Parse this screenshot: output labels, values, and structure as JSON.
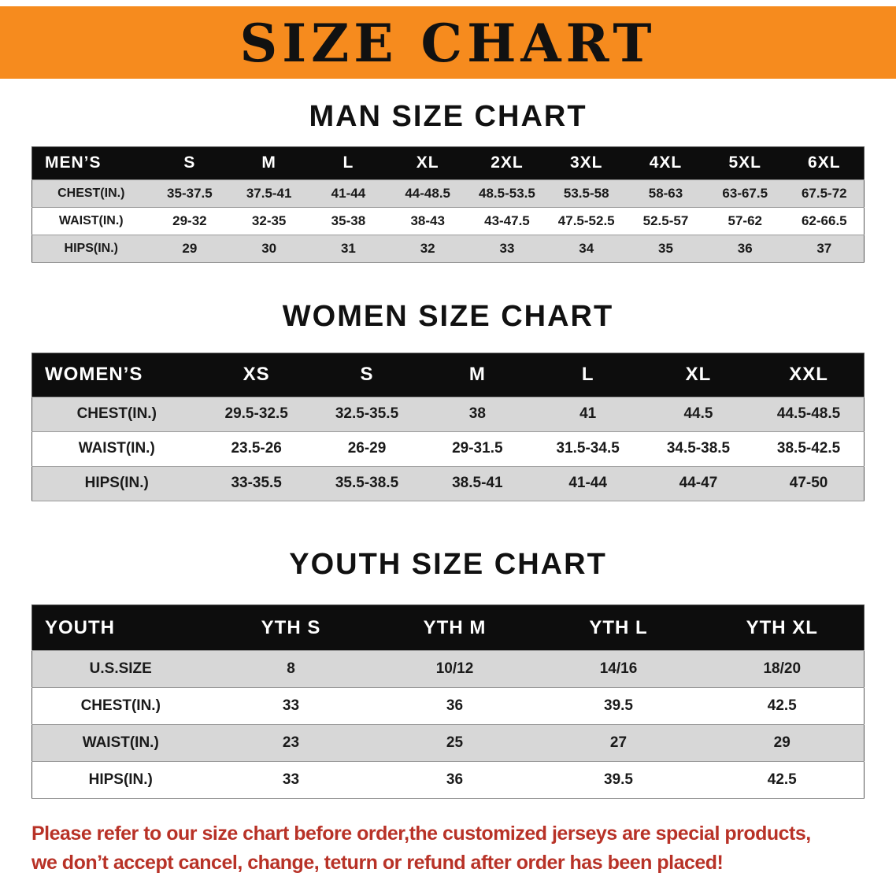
{
  "banner": {
    "title": "SIZE CHART"
  },
  "colors": {
    "banner_bg": "#f68b1e",
    "header_bg": "#0d0d0d",
    "stripe": "#d7d7d7",
    "disclaimer_color": "#b83227"
  },
  "sections": [
    {
      "id": "men",
      "heading": "MAN SIZE CHART",
      "table": {
        "header": [
          "MEN’S",
          "S",
          "M",
          "L",
          "XL",
          "2XL",
          "3XL",
          "4XL",
          "5XL",
          "6XL"
        ],
        "rows": [
          [
            "CHEST(IN.)",
            "35-37.5",
            "37.5-41",
            "41-44",
            "44-48.5",
            "48.5-53.5",
            "53.5-58",
            "58-63",
            "63-67.5",
            "67.5-72"
          ],
          [
            "WAIST(IN.)",
            "29-32",
            "32-35",
            "35-38",
            "38-43",
            "43-47.5",
            "47.5-52.5",
            "52.5-57",
            "57-62",
            "62-66.5"
          ],
          [
            "HIPS(IN.)",
            "29",
            "30",
            "31",
            "32",
            "33",
            "34",
            "35",
            "36",
            "37"
          ]
        ]
      }
    },
    {
      "id": "women",
      "heading": "WOMEN SIZE CHART",
      "table": {
        "header": [
          "WOMEN’S",
          "XS",
          "S",
          "M",
          "L",
          "XL",
          "XXL"
        ],
        "rows": [
          [
            "CHEST(IN.)",
            "29.5-32.5",
            "32.5-35.5",
            "38",
            "41",
            "44.5",
            "44.5-48.5"
          ],
          [
            "WAIST(IN.)",
            "23.5-26",
            "26-29",
            "29-31.5",
            "31.5-34.5",
            "34.5-38.5",
            "38.5-42.5"
          ],
          [
            "HIPS(IN.)",
            "33-35.5",
            "35.5-38.5",
            "38.5-41",
            "41-44",
            "44-47",
            "47-50"
          ]
        ]
      }
    },
    {
      "id": "youth",
      "heading": "YOUTH SIZE CHART",
      "table": {
        "header": [
          "YOUTH",
          "YTH S",
          "YTH M",
          "YTH L",
          "YTH XL"
        ],
        "rows": [
          [
            "U.S.SIZE",
            "8",
            "10/12",
            "14/16",
            "18/20"
          ],
          [
            "CHEST(IN.)",
            "33",
            "36",
            "39.5",
            "42.5"
          ],
          [
            "WAIST(IN.)",
            "23",
            "25",
            "27",
            "29"
          ],
          [
            "HIPS(IN.)",
            "33",
            "36",
            "39.5",
            "42.5"
          ]
        ]
      }
    }
  ],
  "disclaimer": {
    "line1": "Please refer to our size chart before order,the customized jerseys are special products,",
    "line2": "we don’t accept cancel, change, teturn or refund after order has been placed!"
  }
}
